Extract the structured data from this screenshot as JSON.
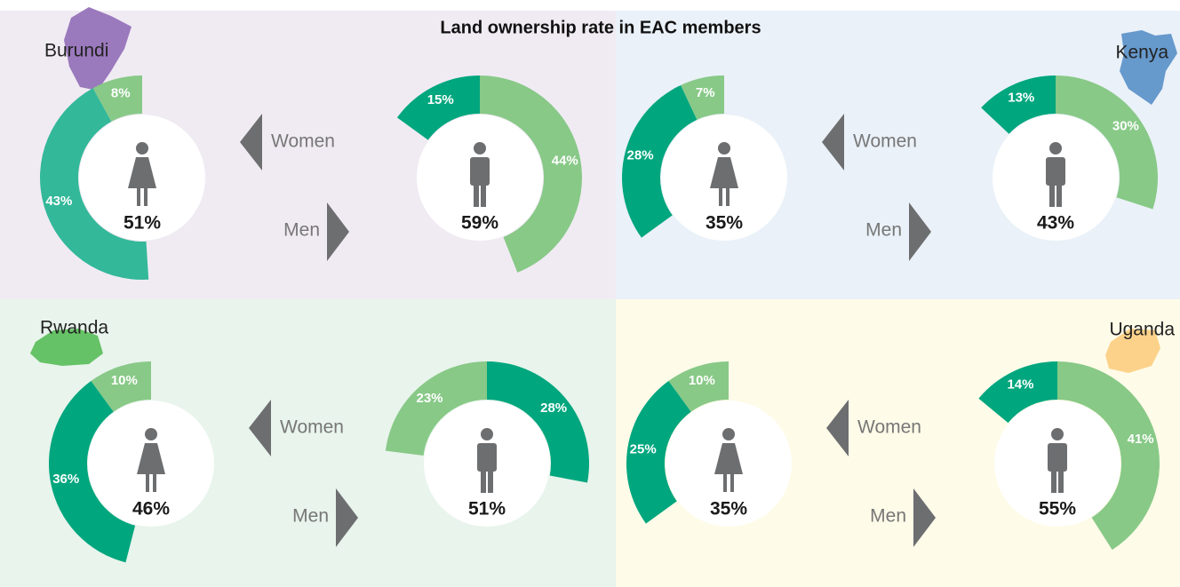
{
  "title": "Land ownership rate in EAC members",
  "panels": [
    {
      "country": "Burundi",
      "women": {
        "label": "Women",
        "total": "51%",
        "segments": [
          {
            "value": 8,
            "label": "8%",
            "color": "#88c987",
            "dir": "ccw"
          },
          {
            "value": 43,
            "label": "43%",
            "color": "#33b89a",
            "dir": "ccw"
          }
        ]
      },
      "men": {
        "label": "Men",
        "total": "59%",
        "segments": [
          {
            "value": 44,
            "label": "44%",
            "color": "#88c987",
            "dir": "cw"
          },
          {
            "value": 15,
            "label": "15%",
            "color": "#00a67e",
            "dir": "ccw"
          }
        ]
      }
    },
    {
      "country": "Kenya",
      "women": {
        "label": "Women",
        "total": "35%",
        "segments": [
          {
            "value": 7,
            "label": "7%",
            "color": "#88c987",
            "dir": "ccw"
          },
          {
            "value": 28,
            "label": "28%",
            "color": "#00a67e",
            "dir": "ccw"
          }
        ]
      },
      "men": {
        "label": "Men",
        "total": "43%",
        "segments": [
          {
            "value": 30,
            "label": "30%",
            "color": "#88c987",
            "dir": "cw"
          },
          {
            "value": 13,
            "label": "13%",
            "color": "#00a67e",
            "dir": "ccw"
          }
        ]
      }
    },
    {
      "country": "Rwanda",
      "women": {
        "label": "Women",
        "total": "46%",
        "segments": [
          {
            "value": 10,
            "label": "10%",
            "color": "#88c987",
            "dir": "ccw"
          },
          {
            "value": 36,
            "label": "36%",
            "color": "#00a67e",
            "dir": "ccw"
          }
        ]
      },
      "men": {
        "label": "Men",
        "total": "51%",
        "segments": [
          {
            "value": 28,
            "label": "28%",
            "color": "#00a67e",
            "dir": "cw"
          },
          {
            "value": 23,
            "label": "23%",
            "color": "#88c987",
            "dir": "ccw"
          }
        ]
      }
    },
    {
      "country": "Uganda",
      "women": {
        "label": "Women",
        "total": "35%",
        "segments": [
          {
            "value": 10,
            "label": "10%",
            "color": "#88c987",
            "dir": "ccw"
          },
          {
            "value": 25,
            "label": "25%",
            "color": "#00a67e",
            "dir": "ccw"
          }
        ]
      },
      "men": {
        "label": "Men",
        "total": "55%",
        "segments": [
          {
            "value": 41,
            "label": "41%",
            "color": "#88c987",
            "dir": "cw"
          },
          {
            "value": 14,
            "label": "14%",
            "color": "#00a67e",
            "dir": "ccw"
          }
        ]
      }
    }
  ]
}
